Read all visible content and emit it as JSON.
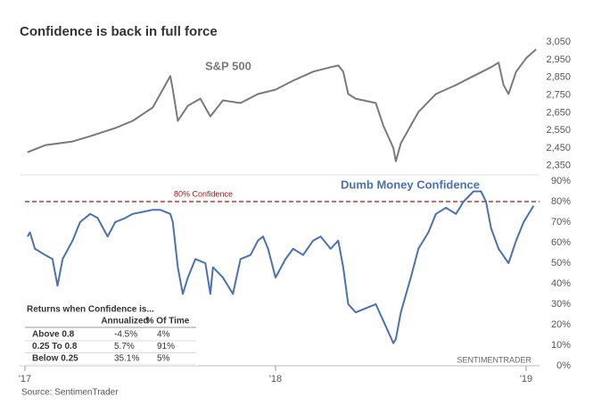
{
  "title": "Confidence is back in full force",
  "source": "Source: SentimenTrader",
  "watermark": "SENTIMENTRADER",
  "chart_data": [
    {
      "type": "line",
      "series_name": "S&P 500",
      "color": "#7a7a7a",
      "x": [
        2017.01,
        2017.08,
        2017.19,
        2017.26,
        2017.36,
        2017.43,
        2017.51,
        2017.56,
        2017.58,
        2017.59,
        2017.61,
        2017.65,
        2017.7,
        2017.74,
        2017.79,
        2017.86,
        2017.93,
        2018.0,
        2018.07,
        2018.15,
        2018.22,
        2018.25,
        2018.27,
        2018.29,
        2018.32,
        2018.4,
        2018.43,
        2018.47,
        2018.48,
        2018.5,
        2018.54,
        2018.57,
        2018.64,
        2018.72,
        2018.79,
        2018.86,
        2018.89,
        2018.91,
        2018.93,
        2018.96,
        2019.0,
        2019.04
      ],
      "values": [
        2426,
        2466,
        2487,
        2517,
        2563,
        2604,
        2680,
        2807,
        2858,
        2781,
        2604,
        2690,
        2730,
        2629,
        2720,
        2705,
        2756,
        2781,
        2832,
        2883,
        2908,
        2918,
        2883,
        2756,
        2730,
        2705,
        2578,
        2451,
        2375,
        2477,
        2578,
        2654,
        2756,
        2807,
        2858,
        2908,
        2934,
        2807,
        2756,
        2883,
        2959,
        3010
      ],
      "xlim": [
        2017,
        2019.1
      ],
      "ylim": [
        2330,
        3070
      ],
      "yticks": [
        {
          "value": 2350,
          "label": "2,350"
        },
        {
          "value": 2450,
          "label": "2,450"
        },
        {
          "value": 2550,
          "label": "2,550"
        },
        {
          "value": 2650,
          "label": "2,650"
        },
        {
          "value": 2750,
          "label": "2,750"
        },
        {
          "value": 2850,
          "label": "2,850"
        },
        {
          "value": 2950,
          "label": "2,950"
        },
        {
          "value": 3050,
          "label": "3,050"
        }
      ]
    },
    {
      "type": "line",
      "series_name": "Dumb Money Confidence",
      "color": "#4a72b0",
      "x": [
        2017.01,
        2017.02,
        2017.04,
        2017.08,
        2017.11,
        2017.13,
        2017.15,
        2017.19,
        2017.22,
        2017.26,
        2017.29,
        2017.33,
        2017.36,
        2017.4,
        2017.43,
        2017.47,
        2017.51,
        2017.54,
        2017.58,
        2017.59,
        2017.61,
        2017.63,
        2017.65,
        2017.68,
        2017.72,
        2017.74,
        2017.75,
        2017.79,
        2017.83,
        2017.86,
        2017.9,
        2017.93,
        2017.95,
        2017.97,
        2018.0,
        2018.04,
        2018.07,
        2018.11,
        2018.15,
        2018.18,
        2018.22,
        2018.25,
        2018.27,
        2018.29,
        2018.32,
        2018.36,
        2018.4,
        2018.43,
        2018.47,
        2018.48,
        2018.5,
        2018.54,
        2018.57,
        2018.61,
        2018.64,
        2018.68,
        2018.72,
        2018.75,
        2018.79,
        2018.82,
        2018.84,
        2018.86,
        2018.89,
        2018.93,
        2018.96,
        2018.99,
        2019.03
      ],
      "values": [
        63,
        65,
        57,
        54,
        52,
        39,
        52,
        61,
        70,
        74,
        72,
        63,
        70,
        72,
        74,
        75,
        76,
        76,
        74,
        70,
        48,
        35,
        43,
        52,
        50,
        35,
        48,
        43,
        35,
        52,
        54,
        61,
        63,
        57,
        43,
        52,
        57,
        54,
        61,
        63,
        57,
        61,
        48,
        30,
        26,
        28,
        30,
        22,
        11,
        13,
        26,
        43,
        57,
        65,
        74,
        77,
        74,
        80,
        85,
        85,
        80,
        67,
        57,
        50,
        61,
        70,
        78
      ],
      "xlim": [
        2017,
        2019.1
      ],
      "xticks": [
        {
          "value": 2017,
          "label": "'17"
        },
        {
          "value": 2018,
          "label": "'18"
        },
        {
          "value": 2019,
          "label": "'19"
        }
      ],
      "ylim": [
        0,
        92
      ],
      "yticks": [
        {
          "value": 0,
          "label": "0%"
        },
        {
          "value": 10,
          "label": "10%"
        },
        {
          "value": 20,
          "label": "20%"
        },
        {
          "value": 30,
          "label": "30%"
        },
        {
          "value": 40,
          "label": "40%"
        },
        {
          "value": 50,
          "label": "50%"
        },
        {
          "value": 60,
          "label": "60%"
        },
        {
          "value": 70,
          "label": "70%"
        },
        {
          "value": 80,
          "label": "80%"
        },
        {
          "value": 90,
          "label": "90%"
        }
      ],
      "threshold": {
        "value": 80,
        "label": "80% Confidence",
        "color": "#a01818"
      }
    }
  ],
  "table": {
    "title": "Returns when Confidence is...",
    "columns": [
      "Annualized",
      "% Of Time"
    ],
    "rows": [
      {
        "label": "Above 0.8",
        "cells": [
          "-4.5%",
          "4%"
        ]
      },
      {
        "label": "0.25 To 0.8",
        "cells": [
          "5.7%",
          "91%"
        ]
      },
      {
        "label": "Below 0.25",
        "cells": [
          "35.1%",
          "5%"
        ]
      }
    ]
  }
}
